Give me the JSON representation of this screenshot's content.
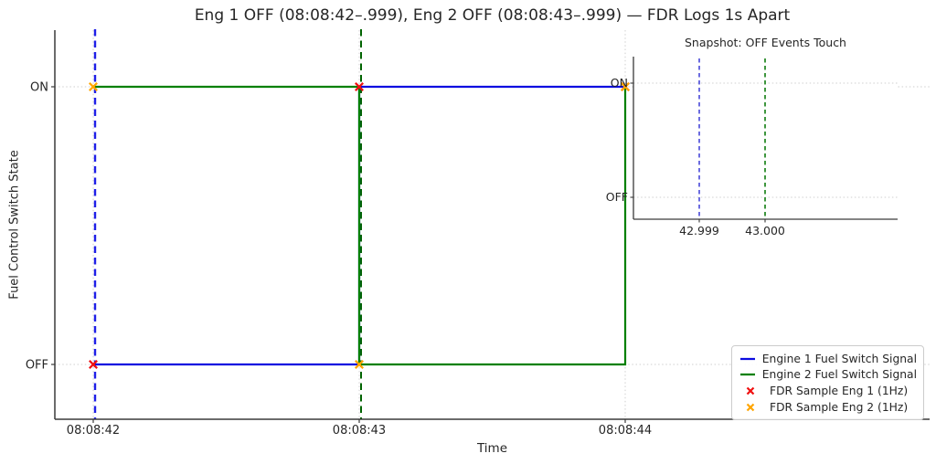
{
  "title": "Eng 1 OFF (08:08:42–.999), Eng 2 OFF (08:08:43–.999) — FDR Logs 1s Apart",
  "axes": {
    "xlabel": "Time",
    "ylabel": "Fuel Control Switch State"
  },
  "chart_data": {
    "type": "line",
    "title": "Eng 1 OFF (08:08:42–.999), Eng 2 OFF (08:08:43–.999) — FDR Logs 1s Apart",
    "xlabel": "Time",
    "ylabel": "Fuel Control Switch State",
    "grid": true,
    "x_axis": {
      "tick_values": [
        42,
        43,
        44
      ],
      "tick_labels": [
        "08:08:42",
        "08:08:43",
        "08:08:44"
      ]
    },
    "y_axis": {
      "tick_values": [
        0,
        1
      ],
      "tick_labels": [
        "OFF",
        "ON"
      ]
    },
    "series": [
      {
        "name": "Engine 1 Fuel Switch Signal",
        "color": "#0b0be0",
        "points": [
          [
            42,
            0
          ],
          [
            43,
            0
          ],
          [
            43,
            1
          ],
          [
            44,
            1
          ]
        ]
      },
      {
        "name": "Engine 2 Fuel Switch Signal",
        "color": "#008000",
        "points": [
          [
            42,
            1
          ],
          [
            43,
            1
          ],
          [
            43,
            0
          ],
          [
            44,
            0
          ],
          [
            44,
            1
          ]
        ]
      }
    ],
    "markers": [
      {
        "name": "FDR Sample Eng 1 (1Hz)",
        "color": "#f01010",
        "shape": "x",
        "points": [
          [
            42,
            0
          ],
          [
            43,
            1
          ],
          [
            44,
            1
          ]
        ]
      },
      {
        "name": "FDR Sample Eng 2 (1Hz)",
        "color": "#ffa500",
        "shape": "x",
        "points": [
          [
            42,
            1
          ],
          [
            43,
            0
          ],
          [
            44,
            1
          ]
        ]
      }
    ],
    "event_lines": [
      {
        "x": 42,
        "color": "#1f1fe8",
        "style": "dashed"
      },
      {
        "x": 43,
        "color": "#006400",
        "style": "dashed"
      }
    ],
    "inset": {
      "title": "Snapshot: OFF Events Touch",
      "x_axis": {
        "tick_values": [
          42.999,
          43.0
        ],
        "tick_labels": [
          "42.999",
          "43.000"
        ]
      },
      "y_axis": {
        "tick_values": [
          0,
          1
        ],
        "tick_labels": [
          "OFF",
          "ON"
        ]
      },
      "event_lines": [
        {
          "x": 42.999,
          "color": "#4848d8",
          "style": "dashed"
        },
        {
          "x": 43.0,
          "color": "#0f7d0f",
          "style": "dashed"
        }
      ]
    }
  },
  "legend": {
    "entries": [
      {
        "label": "Engine 1 Fuel Switch Signal",
        "type": "line",
        "color": "#0b0be0"
      },
      {
        "label": "Engine 2 Fuel Switch Signal",
        "type": "line",
        "color": "#008000"
      },
      {
        "label": "FDR Sample Eng 1 (1Hz)",
        "type": "marker",
        "color": "#f01010"
      },
      {
        "label": "FDR Sample Eng 2 (1Hz)",
        "type": "marker",
        "color": "#ffa500"
      }
    ]
  }
}
